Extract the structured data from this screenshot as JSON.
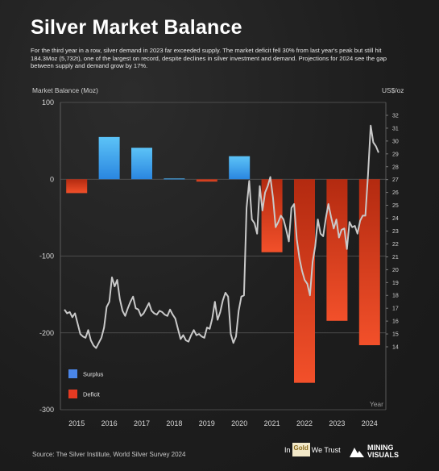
{
  "header": {
    "title": "Silver Market Balance",
    "subtitle": "For the third year in a row, silver demand in 2023 far exceeded supply. The market deficit fell 30% from last year's peak but still hit 184.3Moz (5,732t), one of the largest on record, despite declines in silver investment and demand. Projections for 2024 see the gap between supply and demand grow by 17%."
  },
  "chart_data": {
    "type": "bar",
    "categories": [
      "2015",
      "2016",
      "2017",
      "2018",
      "2019",
      "2020",
      "2021",
      "2022",
      "2023",
      "2024"
    ],
    "values": [
      -18,
      55,
      41,
      1,
      -3,
      30,
      -95,
      -265,
      -184.3,
      -216
    ],
    "ylabel": "Market Balance (Moz)",
    "y2label": "US$/oz",
    "xlabel": "Year",
    "ylim": [
      -300,
      100
    ],
    "yticks": [
      100,
      0,
      -100,
      -200,
      -300
    ],
    "y2lim": [
      13,
      32
    ],
    "y2ticks": [
      14,
      15,
      16,
      17,
      18,
      19,
      20,
      21,
      22,
      23,
      24,
      25,
      26,
      27,
      28,
      29,
      30,
      31,
      32
    ],
    "legend": [
      {
        "name": "Surplus",
        "color": "#4a86e8"
      },
      {
        "name": "Deficit",
        "color": "#e53a22"
      }
    ],
    "legend_position": "bottom-left",
    "colors": {
      "surplus": "#3fa7ec",
      "deficit": "#e5401f",
      "price_line": "#c9c9c9"
    },
    "price_series": {
      "name": "Silver price (US$/oz)",
      "x_start": 2015,
      "x_end": 2025,
      "step_months": 1,
      "values": [
        16.9,
        16.6,
        16.7,
        16.3,
        16.6,
        15.8,
        15.0,
        14.8,
        14.7,
        15.3,
        14.5,
        14.1,
        13.9,
        14.3,
        14.7,
        15.5,
        17.1,
        17.5,
        19.4,
        18.7,
        19.2,
        17.7,
        16.8,
        16.4,
        17.0,
        17.5,
        17.9,
        17.0,
        16.9,
        16.4,
        16.6,
        17.0,
        17.4,
        16.8,
        16.6,
        16.5,
        16.8,
        16.7,
        16.5,
        16.4,
        16.9,
        16.5,
        16.2,
        15.4,
        14.6,
        14.9,
        14.5,
        14.4,
        14.9,
        15.3,
        14.9,
        15.0,
        14.8,
        14.7,
        15.5,
        15.4,
        16.2,
        17.5,
        16.1,
        16.7,
        17.6,
        18.2,
        17.9,
        15.0,
        14.3,
        14.8,
        16.8,
        17.9,
        18.0,
        24.8,
        26.9,
        23.9,
        23.6,
        22.8,
        26.5,
        24.6,
        26.0,
        26.5,
        27.2,
        25.6,
        23.3,
        23.7,
        24.2,
        23.9,
        23.1,
        22.2,
        24.8,
        25.1,
        22.4,
        20.9,
        19.9,
        19.2,
        18.9,
        18.0,
        20.6,
        21.8,
        23.9,
        22.8,
        22.6,
        24.0,
        25.1,
        24.1,
        23.2,
        23.9,
        22.5,
        23.1,
        23.2,
        21.6,
        23.7,
        23.3,
        23.4,
        22.8,
        23.8,
        24.2,
        24.2,
        27.4,
        31.2,
        29.9,
        29.6,
        29.1
      ]
    }
  },
  "footer": {
    "source": "Source: The Silver Institute, World Silver Survey 2024",
    "logo_ingold_pre": "In",
    "logo_ingold_box": "Gold",
    "logo_ingold_post": "We Trust",
    "logo_mining_line1": "MINING",
    "logo_mining_line2": "VISUALS"
  }
}
